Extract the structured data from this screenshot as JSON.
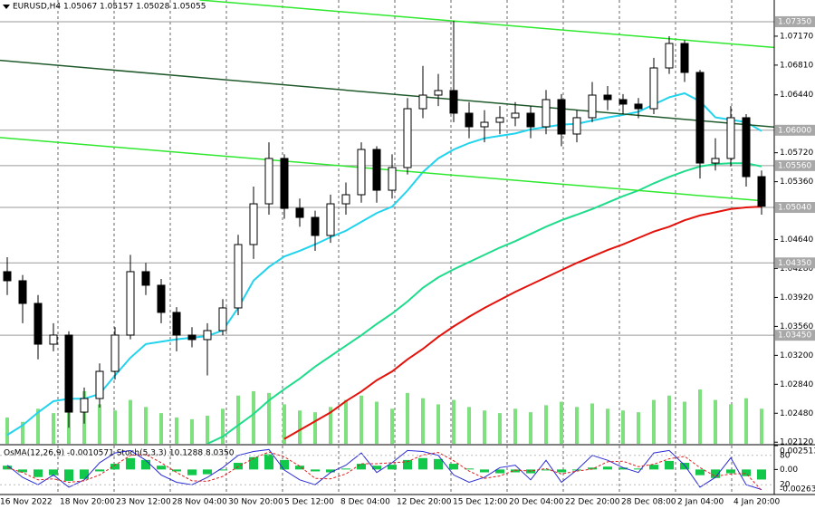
{
  "chart_data": {
    "type": "candlestick",
    "title": "EURUSD,H4 1.05067 1.05157 1.05028 1.05055",
    "x_labels": [
      "16 Nov 2022",
      "18 Nov 20:00",
      "23 Nov 12:00",
      "28 Nov 04:00",
      "30 Nov 20:00",
      "5 Dec 12:00",
      "8 Dec 04:00",
      "12 Dec 20:00",
      "15 Dec 12:00",
      "20 Dec 04:00",
      "22 Dec 20:00",
      "28 Dec 08:00",
      "2 Jan 04:00",
      "4 Jan 20:00"
    ],
    "up_color": "#ffffff",
    "down_color": "#000000",
    "open": [
      1.04241,
      1.04128,
      1.03846,
      1.03339,
      1.03452,
      1.02494,
      1.02663,
      1.03001,
      1.03452,
      1.04241,
      1.04072,
      1.03734,
      1.03452,
      1.03396,
      1.03508,
      1.0379,
      1.04578,
      1.05085,
      1.05649,
      1.05029,
      1.04916,
      1.04691,
      1.05085,
      1.05198,
      1.05761,
      1.05254,
      1.05536,
      1.06268,
      1.06437,
      1.06494,
      1.06212,
      1.06043,
      1.06099,
      1.06156,
      1.06212,
      1.06043,
      1.06381,
      1.05953,
      1.06156,
      1.06437,
      1.06381,
      1.06325,
      1.06268,
      1.06775,
      1.07079,
      1.06719,
      1.05592,
      1.05649,
      1.06156,
      1.05423
    ],
    "high": [
      1.0442,
      1.042,
      1.0395,
      1.036,
      1.035,
      1.028,
      1.031,
      1.0355,
      1.0445,
      1.0435,
      1.0415,
      1.038,
      1.0355,
      1.036,
      1.039,
      1.047,
      1.053,
      1.0585,
      1.057,
      1.0515,
      1.05,
      1.052,
      1.0535,
      1.0585,
      1.058,
      1.057,
      1.064,
      1.068,
      1.067,
      1.0736,
      1.0635,
      1.0625,
      1.063,
      1.0635,
      1.063,
      1.065,
      1.0645,
      1.0625,
      1.066,
      1.0655,
      1.0645,
      1.064,
      1.069,
      1.0717,
      1.0712,
      1.0675,
      1.059,
      1.063,
      1.062,
      1.055
    ],
    "low": [
      1.0395,
      1.036,
      1.0315,
      1.0325,
      1.023,
      1.0235,
      1.0255,
      1.029,
      1.034,
      1.0395,
      1.036,
      1.0325,
      1.033,
      1.0295,
      1.0345,
      1.037,
      1.044,
      1.0495,
      1.049,
      1.048,
      1.045,
      1.046,
      1.0495,
      1.051,
      1.051,
      1.0515,
      1.0545,
      1.0615,
      1.063,
      1.061,
      1.059,
      1.0585,
      1.0595,
      1.0605,
      1.059,
      1.0595,
      1.058,
      1.0585,
      1.061,
      1.0625,
      1.062,
      1.0615,
      1.062,
      1.067,
      1.066,
      1.054,
      1.055,
      1.0555,
      1.053,
      1.0495
    ],
    "close": [
      1.04128,
      1.03846,
      1.03339,
      1.03452,
      1.02494,
      1.02663,
      1.03001,
      1.03452,
      1.04241,
      1.04072,
      1.03734,
      1.03452,
      1.03396,
      1.03508,
      1.0379,
      1.04578,
      1.05085,
      1.05649,
      1.05029,
      1.04916,
      1.04691,
      1.05085,
      1.05198,
      1.05761,
      1.05254,
      1.05536,
      1.06268,
      1.06437,
      1.06494,
      1.06212,
      1.06043,
      1.06099,
      1.06156,
      1.06212,
      1.06043,
      1.06381,
      1.05953,
      1.06156,
      1.06437,
      1.06381,
      1.06325,
      1.06268,
      1.06775,
      1.07079,
      1.06719,
      1.05592,
      1.05649,
      1.06156,
      1.05423,
      1.05055
    ],
    "ylim": [
      1.021,
      1.0762
    ],
    "yticks": [
      {
        "value": 1.0717,
        "label": "1.07170"
      },
      {
        "value": 1.0681,
        "label": "1.06810"
      },
      {
        "value": 1.0644,
        "label": "1.06440"
      },
      {
        "value": 1.0572,
        "label": "1.05720"
      },
      {
        "value": 1.0536,
        "label": "1.05360"
      },
      {
        "value": 1.0464,
        "label": "1.04640"
      },
      {
        "value": 1.0428,
        "label": "1.04280"
      },
      {
        "value": 1.0392,
        "label": "1.03920"
      },
      {
        "value": 1.0356,
        "label": "1.03560"
      },
      {
        "value": 1.032,
        "label": "1.03200"
      },
      {
        "value": 1.0284,
        "label": "1.02840"
      },
      {
        "value": 1.0248,
        "label": "1.02480"
      },
      {
        "value": 1.0212,
        "label": "1.02120"
      }
    ],
    "levels": [
      {
        "value": 1.0735,
        "label": "1.07350"
      },
      {
        "value": 1.06,
        "label": "1.06000"
      },
      {
        "value": 1.0556,
        "label": "1.05560"
      },
      {
        "value": 1.0504,
        "label": "1.05040"
      },
      {
        "value": 1.0435,
        "label": "1.04350"
      },
      {
        "value": 1.0345,
        "label": "1.03450"
      }
    ],
    "moving_averages": [
      {
        "color": "#22d3ee",
        "values": [
          1.0221,
          1.0233,
          1.0249,
          1.0263,
          1.0266,
          1.0266,
          1.0272,
          1.0295,
          1.0317,
          1.0334,
          1.0337,
          1.034,
          1.0342,
          1.0344,
          1.0351,
          1.0379,
          1.0413,
          1.043,
          1.0443,
          1.045,
          1.0458,
          1.0467,
          1.0475,
          1.0486,
          1.0497,
          1.0505,
          1.0525,
          1.0548,
          1.0565,
          1.0576,
          1.0584,
          1.059,
          1.0593,
          1.0596,
          1.0601,
          1.0604,
          1.0607,
          1.0608,
          1.0612,
          1.0616,
          1.0619,
          1.0623,
          1.0632,
          1.0641,
          1.0646,
          1.0636,
          1.0616,
          1.0613,
          1.061,
          1.0599
        ]
      },
      {
        "color": "#1fdc8c",
        "values": [
          null,
          null,
          null,
          null,
          null,
          null,
          null,
          null,
          null,
          null,
          null,
          null,
          null,
          1.021,
          1.0219,
          1.0233,
          1.0247,
          1.0264,
          1.0278,
          1.0291,
          1.0306,
          1.0319,
          1.0332,
          1.0345,
          1.0359,
          1.0372,
          1.0387,
          1.0404,
          1.0417,
          1.0427,
          1.0436,
          1.0445,
          1.0454,
          1.0462,
          1.0471,
          1.048,
          1.0488,
          1.0495,
          1.0502,
          1.051,
          1.0518,
          1.0525,
          1.0534,
          1.0542,
          1.0549,
          1.0555,
          1.0558,
          1.0559,
          1.0559,
          1.0555
        ]
      },
      {
        "color": "#e3120b",
        "values": [
          null,
          null,
          null,
          null,
          null,
          null,
          null,
          null,
          null,
          null,
          null,
          null,
          null,
          null,
          null,
          null,
          null,
          null,
          1.0216,
          1.0227,
          1.0238,
          1.0249,
          1.0263,
          1.0275,
          1.0289,
          1.03,
          1.0315,
          1.0328,
          1.0343,
          1.0356,
          1.0368,
          1.0379,
          1.0389,
          1.0399,
          1.0408,
          1.0417,
          1.0426,
          1.0435,
          1.0443,
          1.0451,
          1.0458,
          1.0466,
          1.0474,
          1.048,
          1.0488,
          1.0494,
          1.0498,
          1.0502,
          1.0504,
          1.0505
        ]
      }
    ],
    "trendlines": [
      {
        "color": "#2ee82e",
        "x": [
          12.5,
          49.8
        ],
        "values": [
          1.0762,
          1.0703
        ]
      },
      {
        "color": "#205a2c",
        "x": [
          -0.5,
          49.8
        ],
        "values": [
          1.0687,
          1.0604
        ]
      },
      {
        "color": "#2ee82e",
        "x": [
          -0.5,
          49.2
        ],
        "values": [
          1.0591,
          1.0512
        ]
      }
    ],
    "volumes": {
      "color": "#7ee07e",
      "values": [
        30,
        25,
        40,
        35,
        55,
        60,
        45,
        38,
        50,
        42,
        35,
        30,
        28,
        32,
        40,
        55,
        60,
        58,
        45,
        38,
        36,
        42,
        50,
        55,
        48,
        40,
        58,
        52,
        45,
        50,
        42,
        38,
        35,
        40,
        36,
        44,
        48,
        42,
        46,
        40,
        38,
        36,
        50,
        55,
        48,
        62,
        50,
        45,
        52,
        40
      ]
    },
    "oscillator": {
      "title": "OsMA(12,26,9) -0.0010571 Stoch(5,3,3) 10.1288 8.0350",
      "ylim": [
        -0.002635,
        0.0025134
      ],
      "yticks": [
        0.0025134,
        {
          "value": 0,
          "label": "0.00"
        },
        -0.002635
      ],
      "osma": {
        "color": "#12c84a",
        "values": [
          0.0004,
          -0.0003,
          -0.0008,
          -0.0006,
          -0.0012,
          -0.001,
          -0.0002,
          0.0006,
          0.0012,
          0.001,
          0.0004,
          -0.0002,
          -0.0006,
          -0.0005,
          -0.0001,
          0.0007,
          0.0013,
          0.0016,
          0.001,
          0.0004,
          -0.0002,
          -0.0003,
          0.0001,
          0.0006,
          0.0004,
          0.0005,
          0.001,
          0.0012,
          0.0011,
          0.0006,
          0.0001,
          -0.0003,
          -0.0004,
          -0.0003,
          -0.0004,
          -0.0001,
          -0.0003,
          -0.0001,
          0.0002,
          0.0003,
          0.0002,
          0.0001,
          0.0005,
          0.0009,
          0.0007,
          -0.0006,
          -0.0009,
          -0.0004,
          -0.0007,
          -0.0010571
        ]
      },
      "stoch_ylim": [
        0,
        100
      ],
      "stoch_yticks": [
        80,
        20
      ],
      "stoch": [
        {
          "color": "#2b2bd6",
          "values": [
            60,
            35,
            20,
            40,
            15,
            30,
            65,
            85,
            90,
            70,
            40,
            25,
            20,
            35,
            55,
            80,
            88,
            92,
            50,
            30,
            20,
            45,
            60,
            85,
            45,
            65,
            90,
            88,
            80,
            40,
            25,
            35,
            55,
            60,
            30,
            70,
            25,
            50,
            80,
            70,
            55,
            45,
            85,
            90,
            60,
            15,
            35,
            75,
            20,
            10.1288
          ]
        },
        {
          "color": "#e02020",
          "values": [
            55,
            45,
            30,
            32,
            25,
            28,
            40,
            60,
            80,
            82,
            65,
            45,
            28,
            27,
            37,
            57,
            74,
            87,
            77,
            58,
            33,
            32,
            42,
            63,
            63,
            65,
            67,
            81,
            86,
            69,
            48,
            33,
            38,
            50,
            48,
            53,
            42,
            48,
            52,
            67,
            68,
            57,
            62,
            73,
            78,
            55,
            37,
            42,
            43,
            8.035
          ]
        }
      ]
    }
  }
}
